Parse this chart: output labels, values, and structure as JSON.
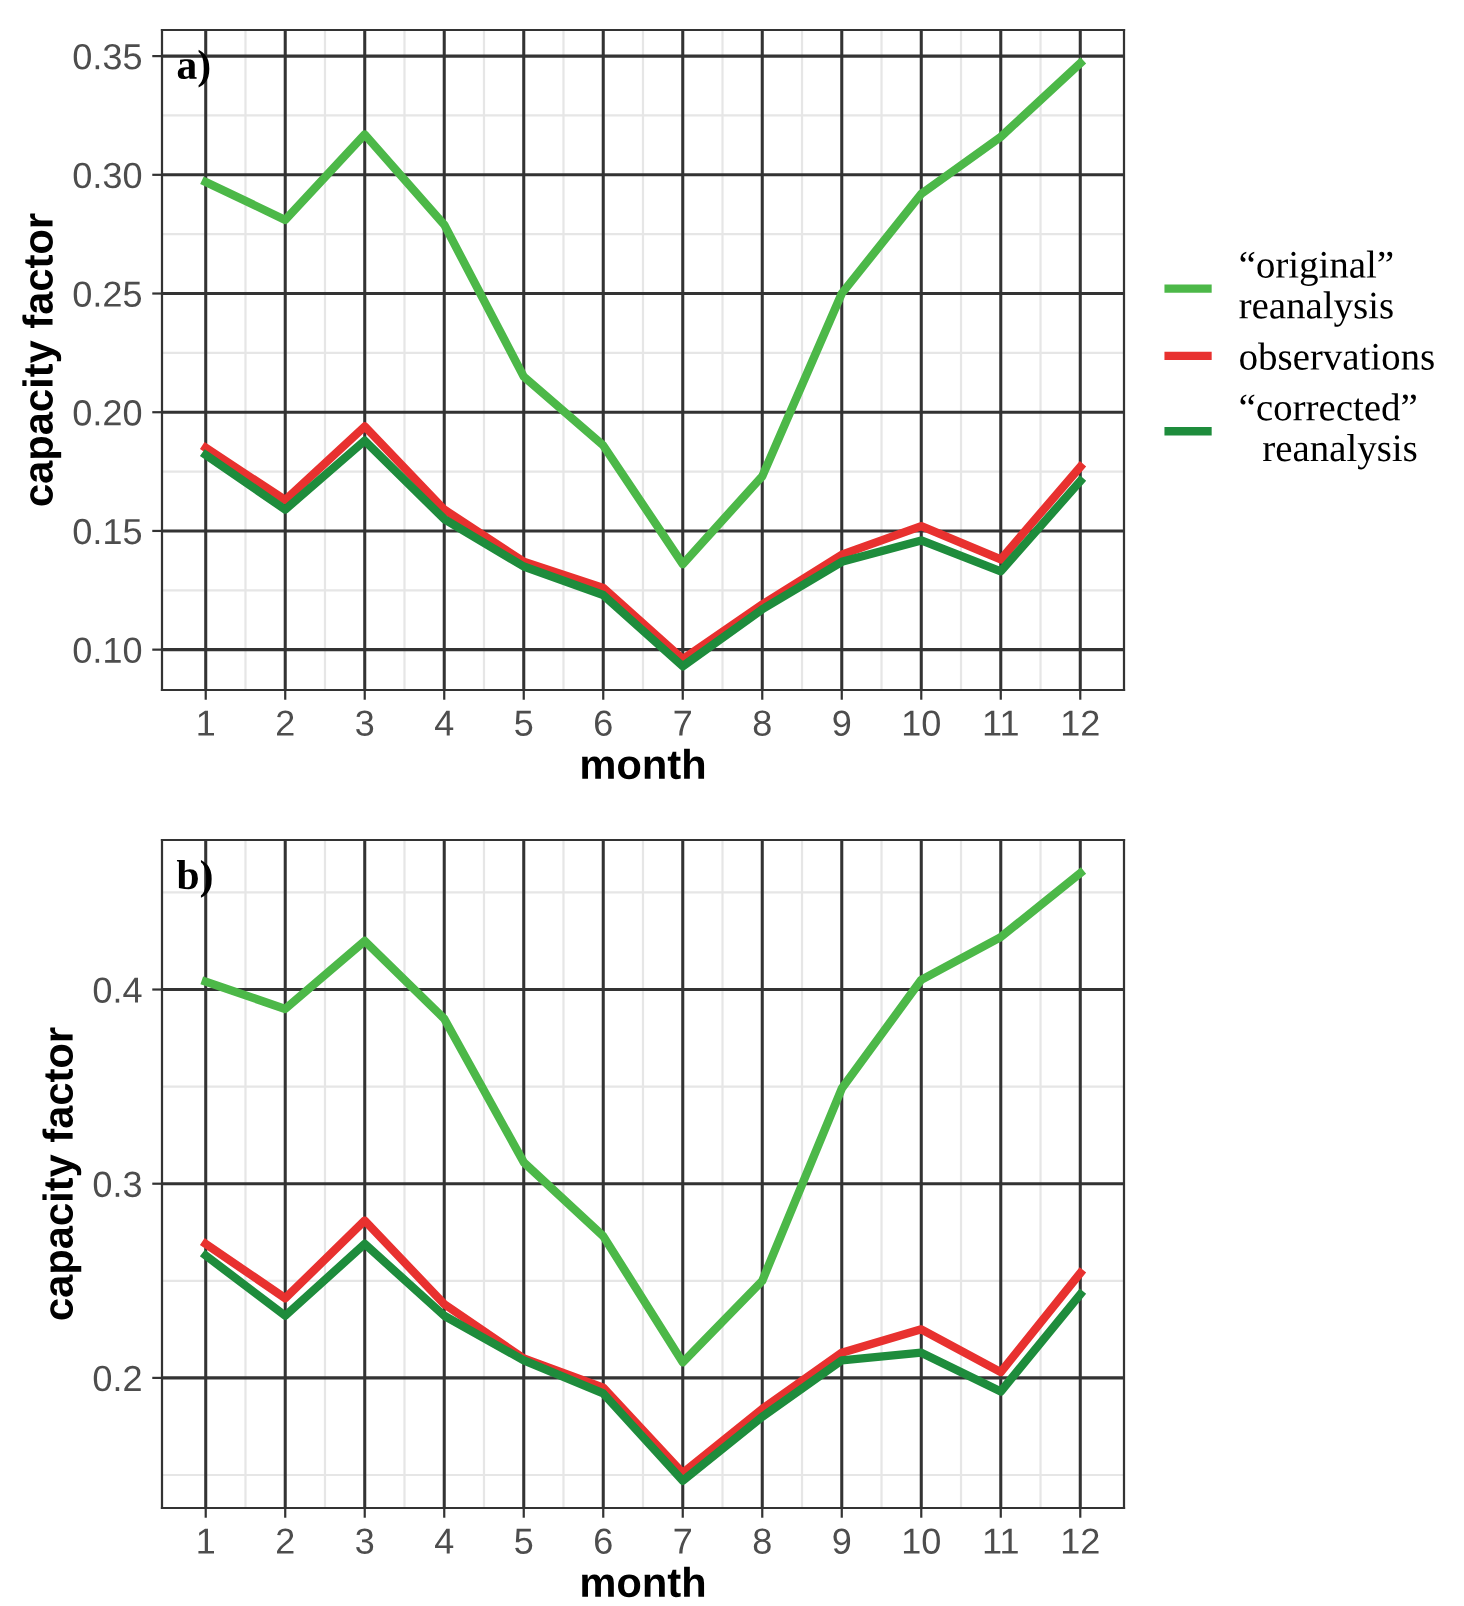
{
  "chart_data": [
    {
      "type": "line",
      "xlabel": "month",
      "ylabel": "capacity factor",
      "annotations": [
        "a)"
      ],
      "legend": "right",
      "grid": true,
      "x": [
        1,
        2,
        3,
        4,
        5,
        6,
        7,
        8,
        9,
        10,
        11,
        12
      ],
      "xlim": [
        0.45,
        12.55
      ],
      "xticks": [
        1,
        2,
        3,
        4,
        5,
        6,
        7,
        8,
        9,
        10,
        11,
        12
      ],
      "ylim": [
        0.083,
        0.361
      ],
      "yticks": [
        {
          "value": 0.1,
          "label": "0.10"
        },
        {
          "value": 0.15,
          "label": "0.15"
        },
        {
          "value": 0.2,
          "label": "0.20"
        },
        {
          "value": 0.25,
          "label": "0.25"
        },
        {
          "value": 0.3,
          "label": "0.30"
        },
        {
          "value": 0.35,
          "label": "0.35"
        }
      ],
      "series": [
        {
          "name": "“original”\nreanalysis",
          "color": "#4cb848",
          "values": [
            0.297,
            0.281,
            0.317,
            0.279,
            0.215,
            0.186,
            0.136,
            0.173,
            0.25,
            0.292,
            0.316,
            0.347
          ]
        },
        {
          "name": "observations",
          "color": "#e8312f",
          "values": [
            0.185,
            0.163,
            0.194,
            0.159,
            0.137,
            0.126,
            0.096,
            0.119,
            0.14,
            0.152,
            0.138,
            0.177
          ]
        },
        {
          "name": "“corrected”\nreanalysis",
          "color": "#1e8c3c",
          "values": [
            0.182,
            0.159,
            0.188,
            0.155,
            0.135,
            0.123,
            0.093,
            0.117,
            0.137,
            0.146,
            0.133,
            0.171
          ]
        }
      ]
    },
    {
      "type": "line",
      "xlabel": "month",
      "ylabel": "capacity factor",
      "annotations": [
        "b)"
      ],
      "grid": true,
      "x": [
        1,
        2,
        3,
        4,
        5,
        6,
        7,
        8,
        9,
        10,
        11,
        12
      ],
      "xlim": [
        0.45,
        12.55
      ],
      "xticks": [
        1,
        2,
        3,
        4,
        5,
        6,
        7,
        8,
        9,
        10,
        11,
        12
      ],
      "ylim": [
        0.133,
        0.477
      ],
      "yticks": [
        0.2,
        0.3,
        0.4
      ],
      "series": [
        {
          "color": "#4cb848",
          "values": [
            0.404,
            0.39,
            0.425,
            0.385,
            0.311,
            0.273,
            0.208,
            0.25,
            0.349,
            0.405,
            0.427,
            0.46
          ]
        },
        {
          "color": "#e8312f",
          "values": [
            0.269,
            0.241,
            0.281,
            0.238,
            0.21,
            0.195,
            0.151,
            0.184,
            0.213,
            0.225,
            0.203,
            0.254
          ]
        },
        {
          "color": "#1e8c3c",
          "values": [
            0.263,
            0.232,
            0.269,
            0.232,
            0.209,
            0.192,
            0.147,
            0.18,
            0.209,
            0.213,
            0.193,
            0.243
          ]
        }
      ]
    }
  ]
}
